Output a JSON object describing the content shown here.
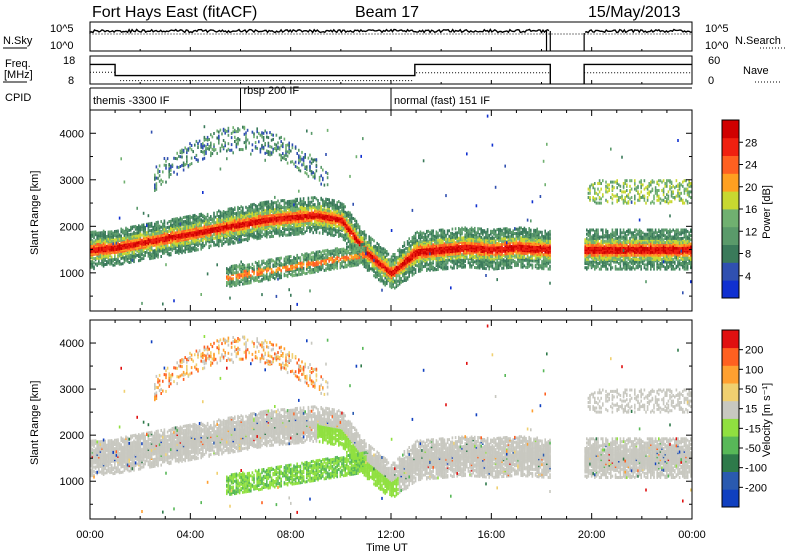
{
  "header": {
    "station": "Fort Hays East (fitACF)",
    "beam": "Beam 17",
    "date": "15/May/2013"
  },
  "left_labels": {
    "nsky": "N.Sky",
    "freq_line1": "Freq.",
    "freq_line2": "[MHz]",
    "cpid": "CPID"
  },
  "right_labels": {
    "nsearch": "N.Search",
    "nave": "Nave"
  },
  "cpid_segments": [
    {
      "label": "themis -3300 IF",
      "start_hour": 0.0
    },
    {
      "label": "rbsp 200 IF",
      "start_hour": 6.0
    },
    {
      "label": "normal (fast) 151 IF",
      "start_hour": 12.0
    }
  ],
  "colors": {
    "power_scale": [
      "#1030d0",
      "#3050b0",
      "#3a7a5a",
      "#5a9a6a",
      "#70b070",
      "#c8d830",
      "#ffa020",
      "#ff6020",
      "#f02010",
      "#d00000"
    ],
    "velocity_scale": [
      "#1040c0",
      "#2a5ab0",
      "#2e7a4a",
      "#58b858",
      "#90e040",
      "#c8c8c0",
      "#f0d070",
      "#ffa030",
      "#ff6020",
      "#e01010"
    ]
  },
  "chart_data": [
    {
      "type": "line",
      "panel": "noise",
      "ylabel_left": "N.Sky",
      "ylabel_right": "N.Search",
      "yticks_left": [
        "10^5",
        "10^0"
      ],
      "yticks_right": [
        "10^5",
        "10^0"
      ],
      "x": [
        0,
        2,
        4,
        6,
        8,
        10,
        12,
        14,
        16,
        18.3,
        19.7,
        22,
        24
      ],
      "series": [
        {
          "name": "N.Sky",
          "values": [
            5000,
            6000,
            6000,
            5500,
            6500,
            6000,
            5500,
            6000,
            5800,
            6000,
            null,
            5500,
            6000
          ]
        }
      ],
      "gap_hours": [
        18.35,
        19.7
      ]
    },
    {
      "type": "line",
      "panel": "frequency",
      "ylabel_left": "Freq. [MHz]",
      "ylabel_right": "Nave",
      "yticks_left": [
        "18",
        "8"
      ],
      "yticks_right": [
        "60",
        "0"
      ],
      "x": [
        0,
        0.95,
        1.0,
        12.9,
        13.0,
        18.35,
        19.7,
        24
      ],
      "series": [
        {
          "name": "Freq.",
          "values": [
            15,
            15,
            11,
            11,
            15,
            15,
            15,
            15
          ]
        }
      ]
    },
    {
      "type": "heatmap",
      "panel": "power",
      "xlabel": "",
      "ylabel": "Slant Range [km]",
      "xlim": [
        0,
        24
      ],
      "ylim": [
        180,
        4500
      ],
      "yticks": [
        "1000",
        "2000",
        "3000",
        "4000"
      ],
      "colorbar_label": "Power [dB]",
      "colorbar_ticks": [
        "4",
        "8",
        "12",
        "16",
        "20",
        "24",
        "28"
      ],
      "main_band_hours": [
        0,
        1,
        2,
        3,
        4,
        5,
        6,
        7,
        8,
        9,
        10,
        11,
        12,
        13,
        14,
        15,
        16,
        17,
        18.3
      ],
      "main_band_range_km": [
        1500,
        1550,
        1650,
        1750,
        1850,
        1950,
        2050,
        2150,
        2200,
        2250,
        2150,
        1450,
        1000,
        1450,
        1500,
        1550,
        1500,
        1550,
        1500
      ],
      "gap_hours": [
        18.35,
        19.7
      ]
    },
    {
      "type": "heatmap",
      "panel": "velocity",
      "xlabel": "Time UT",
      "ylabel": "Slant Range [km]",
      "xlim": [
        0,
        24
      ],
      "ylim": [
        180,
        4500
      ],
      "xticks": [
        "00:00",
        "04:00",
        "08:00",
        "12:00",
        "16:00",
        "20:00",
        "00:00"
      ],
      "yticks": [
        "1000",
        "2000",
        "3000",
        "4000"
      ],
      "colorbar_label": "Velocity [m s⁻¹]",
      "colorbar_ticks": [
        "-200",
        "-100",
        "-50",
        "-15",
        "15",
        "50",
        "100",
        "200"
      ]
    }
  ]
}
